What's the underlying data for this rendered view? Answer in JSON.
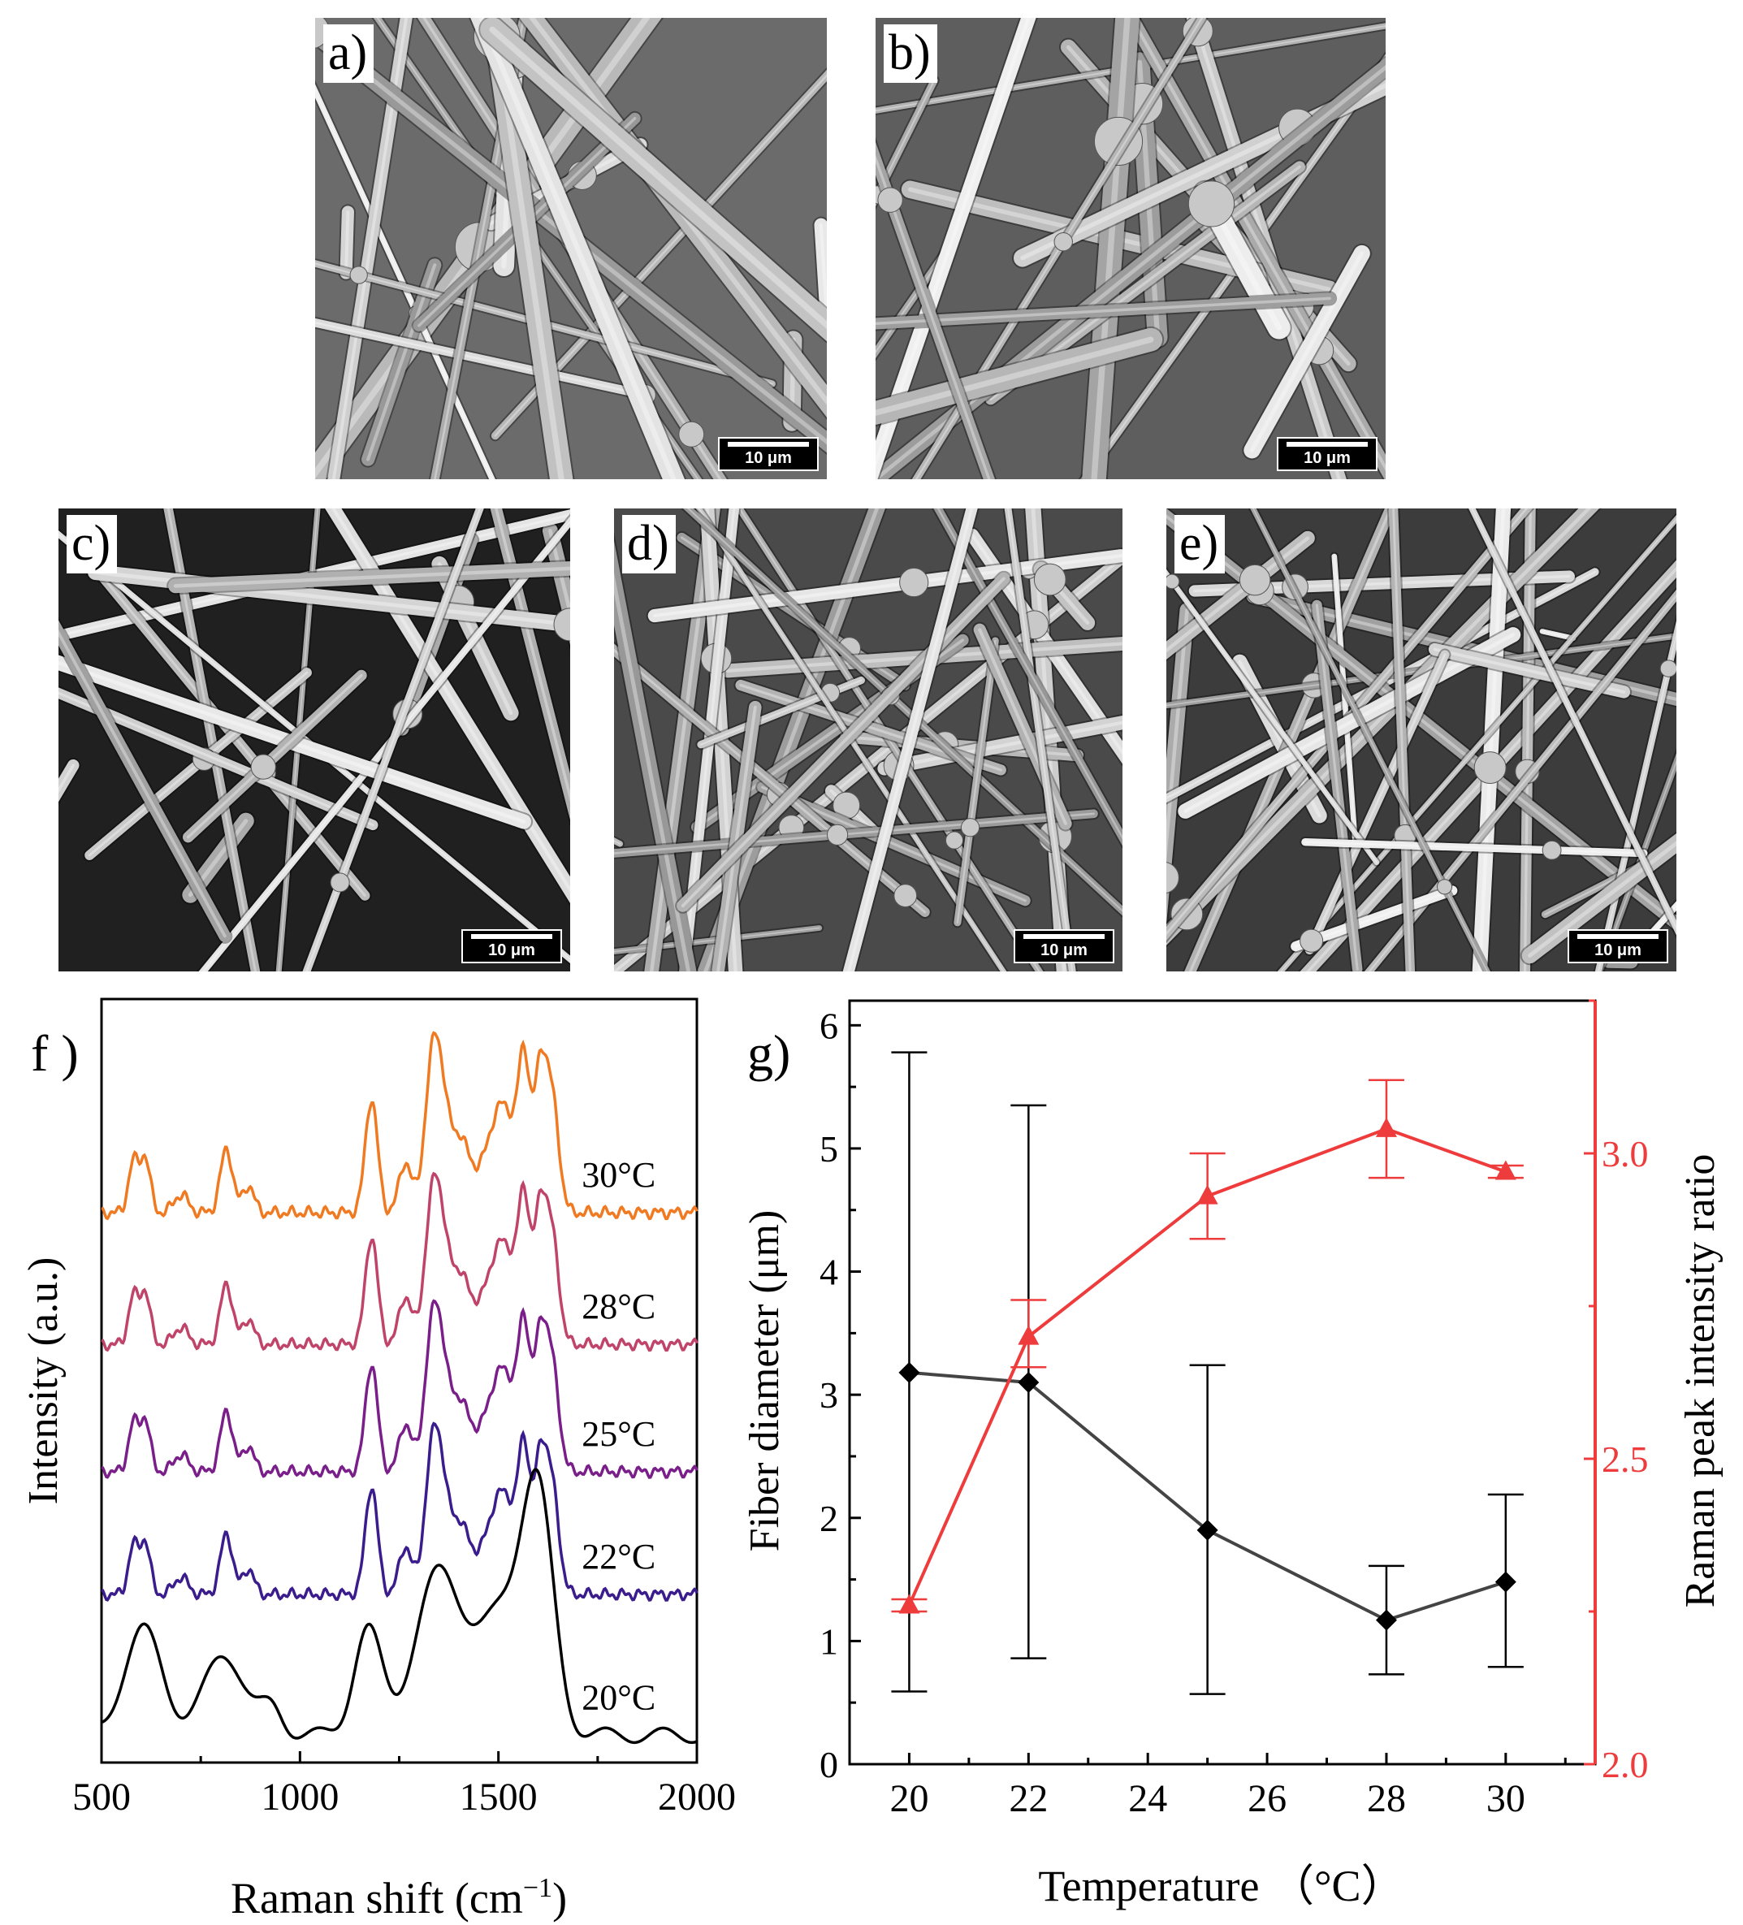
{
  "sem_panels": [
    {
      "label": "a)",
      "scale_bar": "10 μm",
      "tone": "#6b6b6b"
    },
    {
      "label": "b)",
      "scale_bar": "10 μm",
      "tone": "#5e5e5e"
    },
    {
      "label": "c)",
      "scale_bar": "10 μm",
      "tone": "#202020"
    },
    {
      "label": "d)",
      "scale_bar": "10 μm",
      "tone": "#4a4a4a"
    },
    {
      "label": "e)",
      "scale_bar": "10 μm",
      "tone": "#3c3c3c"
    }
  ],
  "chart_data": [
    {
      "panel_label": "f )",
      "type": "line",
      "xlabel": "Raman shift (cm",
      "xlabel_sup": "−1",
      "xlabel_end": ")",
      "ylabel": "Intensity (a.u.)",
      "xlim": [
        500,
        2000
      ],
      "xticks": [
        "500",
        "1000",
        "1500",
        "2000"
      ],
      "series": [
        {
          "name": "30°C",
          "color": "#f07a22",
          "baseline": 6.05,
          "peak_scale": 1.0
        },
        {
          "name": "28°C",
          "color": "#c0446a",
          "baseline": 4.6,
          "peak_scale": 0.95
        },
        {
          "name": "25°C",
          "color": "#7a1f8a",
          "baseline": 3.2,
          "peak_scale": 0.95
        },
        {
          "name": "22°C",
          "color": "#3b1c8c",
          "baseline": 1.85,
          "peak_scale": 0.95
        },
        {
          "name": "20°C",
          "color": "#000000",
          "baseline": 0.3,
          "peak_scale": 1.0
        }
      ]
    },
    {
      "panel_label": "g)",
      "type": "line",
      "xlabel": "Temperature （°C）",
      "ylabel": "Fiber diameter (μm)",
      "y2label": "Raman peak intensity ratio",
      "xlim": [
        19,
        31.5
      ],
      "ylim": [
        0,
        6.2
      ],
      "y2lim": [
        2.0,
        3.25
      ],
      "xticks": [
        "20",
        "22",
        "24",
        "26",
        "28",
        "30"
      ],
      "yticks": [
        "0",
        "1",
        "2",
        "3",
        "4",
        "5",
        "6"
      ],
      "y2ticks": [
        "2.0",
        "2.5",
        "3.0"
      ],
      "series": [
        {
          "name": "Fiber diameter",
          "axis": "left",
          "color": "#444444",
          "marker": "diamond",
          "x": [
            20,
            22,
            25,
            28,
            30
          ],
          "y": [
            3.18,
            3.1,
            1.9,
            1.17,
            1.48
          ],
          "err_low": [
            0.59,
            0.86,
            0.57,
            0.73,
            0.79
          ],
          "err_high": [
            5.78,
            5.35,
            3.24,
            1.61,
            2.19
          ]
        },
        {
          "name": "Raman peak intensity ratio",
          "axis": "right",
          "color": "#ee3b3b",
          "marker": "triangle",
          "x": [
            20,
            22,
            25,
            28,
            30
          ],
          "y": [
            2.26,
            2.7,
            2.93,
            3.04,
            2.97
          ],
          "err_low": [
            2.25,
            2.65,
            2.86,
            2.96,
            2.96
          ],
          "err_high": [
            2.27,
            2.76,
            3.0,
            3.12,
            2.98
          ]
        }
      ]
    }
  ]
}
